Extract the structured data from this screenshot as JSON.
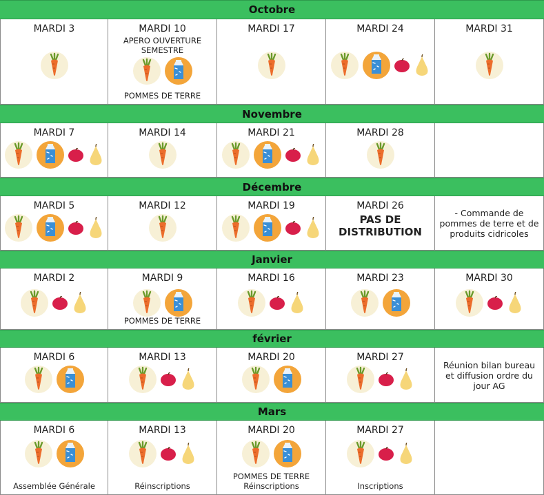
{
  "months": [
    {
      "name": "Octobre",
      "cells": [
        {
          "day": "MARDI 3",
          "icons": [
            "carrot-icon"
          ]
        },
        {
          "day": "MARDI 10",
          "top_notes": [
            "APERO OUVERTURE",
            "SEMESTRE"
          ],
          "icons": [
            "carrot-icon",
            "milk-icon"
          ],
          "bottom_notes": [
            "POMMES DE TERRE"
          ]
        },
        {
          "day": "MARDI 17",
          "icons": [
            "carrot-icon"
          ]
        },
        {
          "day": "MARDI 24",
          "icons": [
            "carrot-icon",
            "milk-icon",
            "apple-icon",
            "pear-icon"
          ]
        },
        {
          "day": "MARDI 31",
          "icons": [
            "carrot-icon"
          ]
        }
      ]
    },
    {
      "name": "Novembre",
      "cells": [
        {
          "day": "MARDI 7",
          "icons": [
            "carrot-icon",
            "milk-icon",
            "apple-icon",
            "pear-icon"
          ]
        },
        {
          "day": "MARDI 14",
          "icons": [
            "carrot-icon"
          ]
        },
        {
          "day": "MARDI 21",
          "icons": [
            "carrot-icon",
            "milk-icon",
            "apple-icon",
            "pear-icon"
          ]
        },
        {
          "day": "MARDI 28",
          "icons": [
            "carrot-icon"
          ]
        },
        {
          "day": "",
          "icons": []
        }
      ]
    },
    {
      "name": "Décembre",
      "cells": [
        {
          "day": "MARDI 5",
          "icons": [
            "carrot-icon",
            "milk-icon",
            "apple-icon",
            "pear-icon"
          ]
        },
        {
          "day": "MARDI 12",
          "icons": [
            "carrot-icon"
          ]
        },
        {
          "day": "MARDI 19",
          "icons": [
            "carrot-icon",
            "milk-icon",
            "apple-icon",
            "pear-icon"
          ]
        },
        {
          "day": "MARDI 26",
          "big_notes": [
            "PAS DE",
            "DISTRIBUTION"
          ],
          "icons": []
        },
        {
          "day": "",
          "free_notes": [
            "- Commande de",
            "pommes de terre et de",
            "produits cidricoles"
          ],
          "icons": []
        }
      ]
    },
    {
      "name": "Janvier",
      "cells": [
        {
          "day": "MARDI 2",
          "icons": [
            "carrot-icon",
            "apple-icon",
            "pear-icon"
          ]
        },
        {
          "day": "MARDI 9",
          "icons": [
            "carrot-icon",
            "milk-icon"
          ],
          "bottom_notes": [
            "POMMES DE TERRE"
          ]
        },
        {
          "day": "MARDI 16",
          "icons": [
            "carrot-icon",
            "apple-icon",
            "pear-icon"
          ]
        },
        {
          "day": "MARDI 23",
          "icons": [
            "carrot-icon",
            "milk-icon"
          ]
        },
        {
          "day": "MARDI 30",
          "icons": [
            "carrot-icon",
            "apple-icon",
            "pear-icon"
          ]
        }
      ]
    },
    {
      "name": "février",
      "cells": [
        {
          "day": "MARDI 6",
          "icons": [
            "carrot-icon",
            "milk-icon"
          ]
        },
        {
          "day": "MARDI 13",
          "icons": [
            "carrot-icon",
            "apple-icon",
            "pear-icon"
          ]
        },
        {
          "day": "MARDI 20",
          "icons": [
            "carrot-icon",
            "milk-icon"
          ]
        },
        {
          "day": "MARDI 27",
          "icons": [
            "carrot-icon",
            "apple-icon",
            "pear-icon"
          ]
        },
        {
          "day": "",
          "free_notes": [
            "Réunion bilan bureau",
            "et diffusion ordre du",
            "jour AG"
          ],
          "icons": []
        }
      ]
    },
    {
      "name": "Mars",
      "cells": [
        {
          "day": "MARDI 6",
          "icons": [
            "carrot-icon",
            "milk-icon"
          ],
          "bottom_notes": [
            "Assemblée Générale"
          ]
        },
        {
          "day": "MARDI 13",
          "icons": [
            "carrot-icon",
            "apple-icon",
            "pear-icon"
          ],
          "bottom_notes": [
            "Réinscriptions"
          ]
        },
        {
          "day": "MARDI 20",
          "icons": [
            "carrot-icon",
            "milk-icon"
          ],
          "bottom_notes": [
            "POMMES DE TERRE",
            "Réinscriptions"
          ]
        },
        {
          "day": "MARDI 27",
          "icons": [
            "carrot-icon",
            "apple-icon",
            "pear-icon"
          ],
          "bottom_notes": [
            "Inscriptions"
          ]
        },
        {
          "day": "",
          "icons": []
        }
      ]
    }
  ],
  "colors": {
    "month_band": "#3bbf5f",
    "grid_line": "#8a8a8a",
    "carrot_circle": "#f7f0d6",
    "milk_circle": "#f3a53a",
    "apple": "#d81f4a",
    "pear": "#f6d679"
  }
}
